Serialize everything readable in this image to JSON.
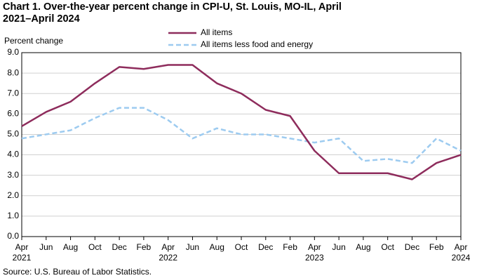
{
  "chart_data": {
    "type": "line",
    "title": "Chart 1. Over-the-year percent change in CPI-U, St. Louis, MO-IL, April 2021–April 2024",
    "y_label": "Percent change",
    "source": "Source: U.S. Bureau of Labor Statistics.",
    "categories": [
      "Apr",
      "Jun",
      "Aug",
      "Oct",
      "Dec",
      "Feb",
      "Apr",
      "Jun",
      "Aug",
      "Oct",
      "Dec",
      "Feb",
      "Apr",
      "Jun",
      "Aug",
      "Oct",
      "Dec",
      "Feb",
      "Apr"
    ],
    "years": [
      "2021",
      null,
      null,
      null,
      null,
      null,
      "2022",
      null,
      null,
      null,
      null,
      null,
      "2023",
      null,
      null,
      null,
      null,
      null,
      "2024"
    ],
    "series": [
      {
        "name": "All items",
        "color": "#8e2c5c",
        "dashed": false,
        "values": [
          5.4,
          6.1,
          6.6,
          7.5,
          8.3,
          8.2,
          8.4,
          8.4,
          7.5,
          7.0,
          6.2,
          5.9,
          4.2,
          3.1,
          3.1,
          3.1,
          2.8,
          3.6,
          4.0
        ]
      },
      {
        "name": "All items less food and energy",
        "color": "#9dcbf0",
        "dashed": true,
        "values": [
          4.8,
          5.0,
          5.2,
          5.8,
          6.3,
          6.3,
          5.7,
          4.8,
          5.3,
          5.0,
          5.0,
          4.8,
          4.6,
          4.8,
          3.7,
          3.8,
          3.6,
          4.8,
          4.2
        ]
      }
    ],
    "ylim": [
      0,
      9
    ],
    "yticks": [
      {
        "value": 0,
        "label": "0.0"
      },
      {
        "value": 1,
        "label": "1.0"
      },
      {
        "value": 2,
        "label": "2.0"
      },
      {
        "value": 3,
        "label": "3.0"
      },
      {
        "value": 4,
        "label": "4.0"
      },
      {
        "value": 5,
        "label": "5.0"
      },
      {
        "value": 6,
        "label": "6.0"
      },
      {
        "value": 7,
        "label": "7.0"
      },
      {
        "value": 8,
        "label": "8.0"
      },
      {
        "value": 9,
        "label": "9.0"
      }
    ],
    "grid": true
  }
}
